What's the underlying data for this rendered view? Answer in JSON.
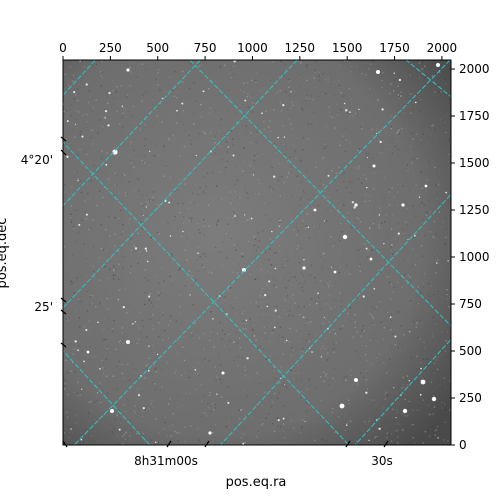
{
  "chart_data": {
    "type": "image",
    "colormap": "gray",
    "xlabel": "pos.eq.ra",
    "ylabel": "pos.eq.dec",
    "pixel_xlim": [
      0,
      2048
    ],
    "pixel_ylim": [
      0,
      2048
    ],
    "top_ticks": [
      0,
      250,
      500,
      750,
      1000,
      1250,
      1500,
      1750,
      2000
    ],
    "right_ticks": [
      0,
      250,
      500,
      750,
      1000,
      1250,
      1500,
      1750,
      2000
    ],
    "ra_tick_labels": [
      {
        "text": "8h31m00s",
        "value": "8h31m00s"
      },
      {
        "text": "30s",
        "value": "8h31m30s"
      }
    ],
    "dec_tick_labels": [
      {
        "text": "4°20'",
        "value": "4°20'"
      },
      {
        "text": "25'",
        "value": "4°25'"
      }
    ],
    "grid": true,
    "grid_color": "#2ec4c4"
  }
}
